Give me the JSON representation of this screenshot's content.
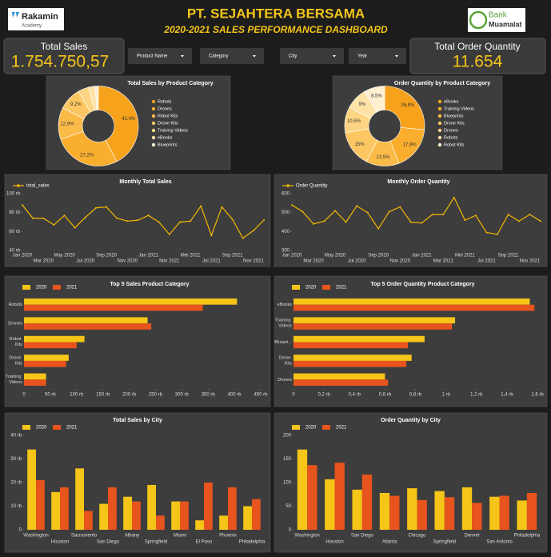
{
  "header": {
    "title": "PT. SEJAHTERA BERSAMA",
    "subtitle": "2020-2021 SALES PERFORMANCE DASHBOARD",
    "logo_left": {
      "name": "Rakamin",
      "tagline": "Academy"
    },
    "logo_right": {
      "line1": "Bank",
      "line2": "Muamalat"
    }
  },
  "kpis": [
    {
      "label": "Total Sales",
      "value": "1.754.750,57"
    },
    {
      "label": "Total Order Quantity",
      "value": "11.654"
    }
  ],
  "filters": [
    "Product Name",
    "Category",
    "City",
    "Year"
  ],
  "chart_data": [
    {
      "type": "pie",
      "title": "Total Sales by Product Category",
      "categories": [
        "Robots",
        "Drones",
        "Robot Kits",
        "Drone Kits",
        "Training Videos",
        "eBooks",
        "Blueprints"
      ],
      "values": [
        42.4,
        27.2,
        12.9,
        9.2,
        4.3,
        2.6,
        1.4
      ],
      "value_labels": [
        "42,4%",
        "27,2%",
        "12,9%",
        "9,2%",
        null,
        null,
        null
      ],
      "colors": [
        "#f7a21b",
        "#f9ae2e",
        "#fbbb48",
        "#fcc762",
        "#fdd482",
        "#fee2a6",
        "#fff0d2"
      ]
    },
    {
      "type": "pie",
      "title": "Order Quantity by Product Category",
      "categories": [
        "eBooks",
        "Training Videos",
        "Blueprints",
        "Drone Kits",
        "Drones",
        "Robots",
        "Robot Kits"
      ],
      "values": [
        26.8,
        17.9,
        13.5,
        15,
        10.5,
        9,
        8.5
      ],
      "value_labels": [
        "26,8%",
        "17,9%",
        "13,5%",
        "15%",
        "10,5%",
        "9%",
        "8,5%"
      ],
      "colors": [
        "#f7a21b",
        "#f9ae2e",
        "#fbbb48",
        "#fcc762",
        "#fdd482",
        "#fee2a6",
        "#fff0d2"
      ]
    },
    {
      "type": "line",
      "title": "Monthly Total Sales",
      "categories": [
        "Jan 2020",
        null,
        "Mar 2020",
        null,
        "May 2020",
        null,
        "Jul 2020",
        null,
        "Sep 2020",
        null,
        "Nov 2020",
        null,
        "Jan 2021",
        null,
        "Mar 2021",
        null,
        "Mei 2021",
        null,
        "Jul 2021",
        null,
        "Sep 2021",
        null,
        "Nov 2021",
        null
      ],
      "series": [
        {
          "name": "total_sales",
          "color": "#f5b800",
          "values": [
            88000,
            74000,
            74000,
            67000,
            77000,
            64000,
            75000,
            85000,
            86000,
            74000,
            71000,
            72000,
            77000,
            70000,
            57000,
            70000,
            71000,
            87000,
            56000,
            86000,
            73000,
            53000,
            61000,
            72000
          ]
        }
      ],
      "ylim": [
        40000,
        100000
      ],
      "yticks": [
        {
          "value": 40000,
          "label": "40 rb"
        },
        {
          "value": 60000,
          "label": "60 rb"
        },
        {
          "value": 80000,
          "label": "80 rb"
        },
        {
          "value": 100000,
          "label": "100 rb"
        }
      ]
    },
    {
      "type": "line",
      "title": "Monthly Order Quantity",
      "categories": [
        "Jan 2020",
        null,
        "Mar 2020",
        null,
        "May 2020",
        null,
        "Jul 2020",
        null,
        "Sep 2020",
        null,
        "Nov 2020",
        null,
        "Jan 2021",
        null,
        "Mar 2021",
        null,
        "Mei 2021",
        null,
        "Jul 2021",
        null,
        "Sep 2021",
        null,
        "Nov 2021",
        null
      ],
      "series": [
        {
          "name": "Order Quantity",
          "color": "#f5b800",
          "values": [
            540,
            505,
            440,
            455,
            510,
            450,
            535,
            500,
            415,
            505,
            530,
            450,
            445,
            490,
            490,
            580,
            460,
            485,
            395,
            385,
            490,
            455,
            490,
            455
          ]
        }
      ],
      "ylim": [
        300,
        600
      ],
      "yticks": [
        300,
        400,
        500,
        600
      ]
    },
    {
      "type": "hbar",
      "title": "Top 5 Sales Product Category",
      "categories": [
        "Robots",
        "Drones",
        "Robot Kits",
        "Drone Kits",
        "Training Videos"
      ],
      "series": [
        {
          "name": "2020",
          "color": "#f5c518",
          "values": [
            405000,
            235000,
            115000,
            85000,
            42000
          ]
        },
        {
          "name": "2021",
          "color": "#e8541d",
          "values": [
            340000,
            242000,
            100000,
            80000,
            42000
          ]
        }
      ],
      "xlim": [
        0,
        450000
      ],
      "xticks": [
        0,
        {
          "value": 50000,
          "label": "50 rb"
        },
        {
          "value": 100000,
          "label": "100 rb"
        },
        {
          "value": 150000,
          "label": "150 rb"
        },
        {
          "value": 200000,
          "label": "200 rb"
        },
        {
          "value": 250000,
          "label": "250 rb"
        },
        {
          "value": 300000,
          "label": "300 rb"
        },
        {
          "value": 350000,
          "label": "350 rb"
        },
        {
          "value": 400000,
          "label": "400 rb"
        },
        {
          "value": 450000,
          "label": "450 rb"
        }
      ]
    },
    {
      "type": "hbar",
      "title": "Top 5 Order Quantity Product Category",
      "categories": [
        "eBooks",
        "Training Videos",
        "Bluepri...",
        "Drone Kits",
        "Drones"
      ],
      "series": [
        {
          "name": "2020",
          "color": "#f5c518",
          "values": [
            1550,
            1060,
            860,
            775,
            600
          ]
        },
        {
          "name": "2021",
          "color": "#e8541d",
          "values": [
            1580,
            1040,
            750,
            740,
            620
          ]
        }
      ],
      "xlim": [
        0,
        1600
      ],
      "xticks": [
        0,
        {
          "value": 200,
          "label": "0,2 rb"
        },
        {
          "value": 400,
          "label": "0,4 rb"
        },
        {
          "value": 600,
          "label": "0,6 rb"
        },
        {
          "value": 800,
          "label": "0,8 rb"
        },
        {
          "value": 1000,
          "label": "1 rb"
        },
        {
          "value": 1200,
          "label": "1,2 rb"
        },
        {
          "value": 1400,
          "label": "1,4 rb"
        },
        {
          "value": 1600,
          "label": "1,6 rb"
        }
      ]
    },
    {
      "type": "vbar",
      "title": "Total Sales by City",
      "categories": [
        "Washington",
        "Houston",
        "Sacramento",
        "San Diego",
        "Albany",
        "Springfield",
        "Miami",
        "El Paso",
        "Phoenix",
        "Philadelphia"
      ],
      "series": [
        {
          "name": "2020",
          "color": "#f5c518",
          "values": [
            34000,
            16000,
            26000,
            11000,
            14000,
            19000,
            12000,
            4000,
            6000,
            10000
          ]
        },
        {
          "name": "2021",
          "color": "#e8541d",
          "values": [
            21000,
            18000,
            8000,
            18000,
            12000,
            6000,
            12000,
            20000,
            18000,
            13000
          ]
        }
      ],
      "ylim": [
        0,
        40000
      ],
      "yticks": [
        0,
        {
          "value": 10000,
          "label": "10 rb"
        },
        {
          "value": 20000,
          "label": "20 rb"
        },
        {
          "value": 30000,
          "label": "30 rb"
        },
        {
          "value": 40000,
          "label": "40 rb"
        }
      ]
    },
    {
      "type": "vbar",
      "title": "Order Quantity by City",
      "categories": [
        "Washington",
        "Houston",
        "San Diego",
        "Atlanta",
        "Chicago",
        "Springfield",
        "Denver",
        "San Antonio",
        "Philadelphia"
      ],
      "series": [
        {
          "name": "2020",
          "color": "#f5c518",
          "values": [
            170,
            107,
            85,
            78,
            88,
            82,
            90,
            70,
            62
          ]
        },
        {
          "name": "2021",
          "color": "#e8541d",
          "values": [
            137,
            142,
            117,
            72,
            63,
            69,
            57,
            72,
            78
          ]
        }
      ],
      "ylim": [
        0,
        200
      ],
      "yticks": [
        0,
        50,
        100,
        150,
        200
      ]
    }
  ]
}
